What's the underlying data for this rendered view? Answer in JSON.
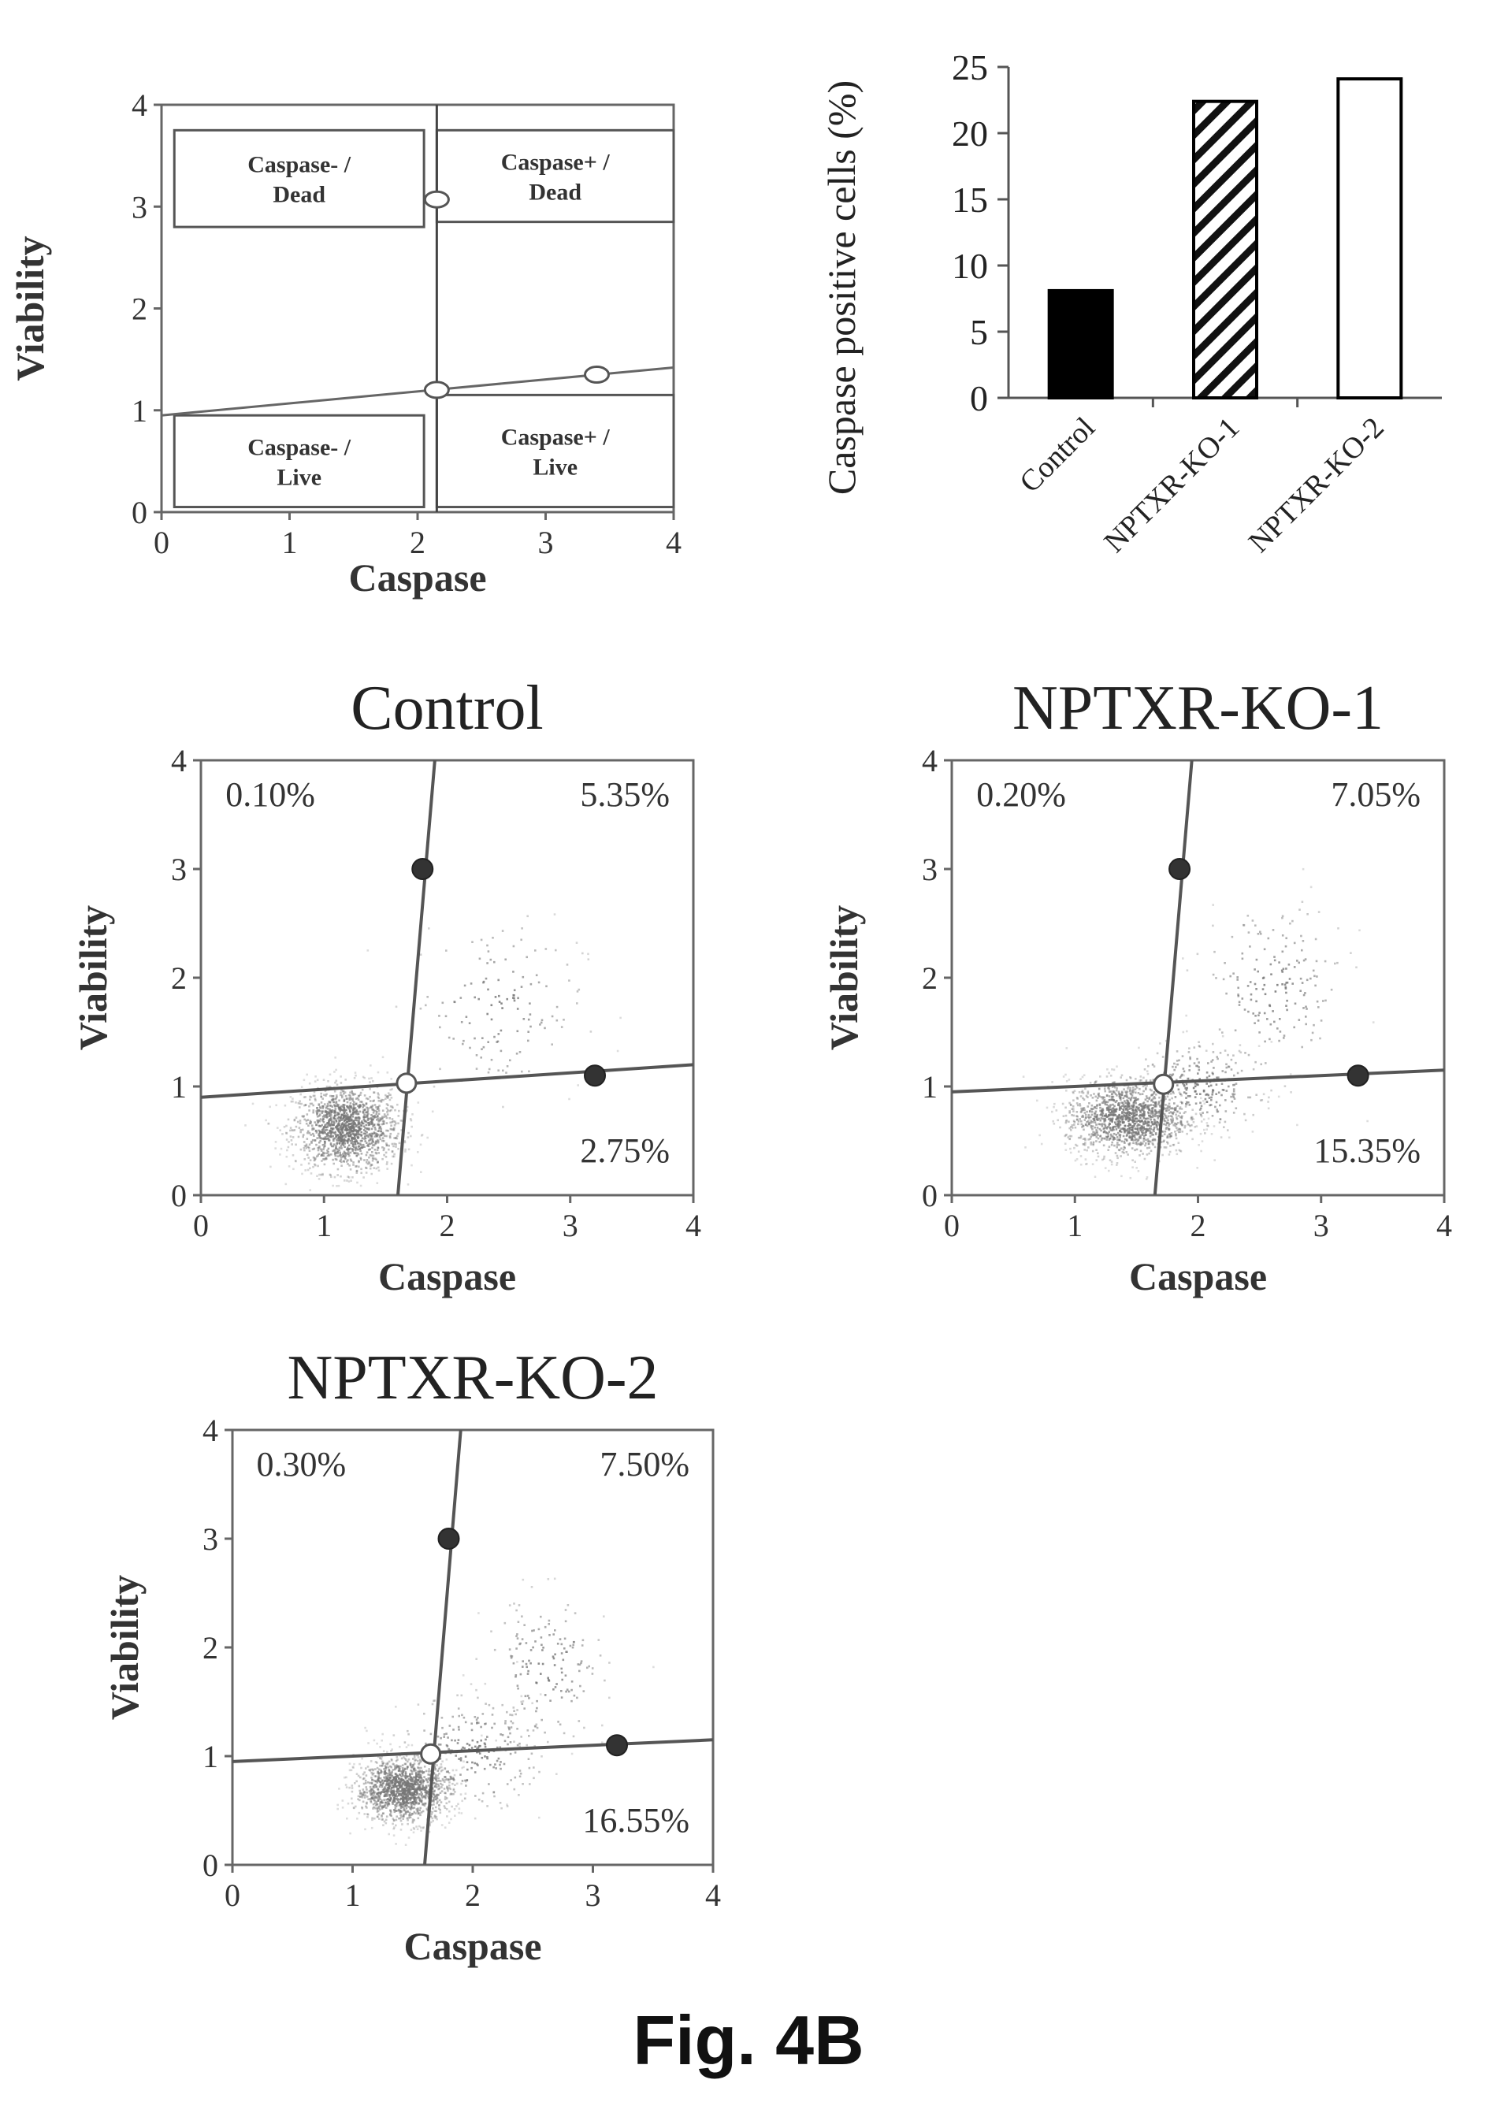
{
  "figure_label": "Fig. 4B",
  "chart_data": [
    {
      "type": "scatter",
      "id": "gating-schematic",
      "title": "",
      "xlabel": "Caspase",
      "ylabel": "Viability",
      "xlim": [
        0,
        4
      ],
      "ylim": [
        0,
        4
      ],
      "xticks": [
        "0",
        "1",
        "2",
        "3",
        "4"
      ],
      "yticks": [
        "0",
        "1",
        "2",
        "3",
        "4"
      ],
      "grid": false,
      "vertical_gate": [
        [
          2.15,
          0
        ],
        [
          2.15,
          4
        ]
      ],
      "horizontal_gate": [
        [
          0,
          0.95
        ],
        [
          4,
          1.42
        ]
      ],
      "gate_markers": [
        [
          2.15,
          3.07
        ],
        [
          2.15,
          1.2
        ],
        [
          3.4,
          1.35
        ]
      ],
      "quadrants": [
        {
          "line1": "Caspase- /",
          "line2": "Dead",
          "box": [
            0.1,
            2.8,
            2.05,
            3.75
          ]
        },
        {
          "line1": "Caspase+ /",
          "line2": "Dead",
          "box": [
            2.15,
            2.85,
            4.0,
            3.75
          ]
        },
        {
          "line1": "Caspase- /",
          "line2": "Live",
          "box": [
            0.1,
            0.05,
            2.05,
            0.95
          ]
        },
        {
          "line1": "Caspase+ /",
          "line2": "Live",
          "box": [
            2.15,
            0.05,
            4.0,
            1.15
          ]
        }
      ]
    },
    {
      "type": "bar",
      "id": "caspase-bar",
      "title": "",
      "xlabel": "",
      "ylabel": "Caspase positive cells (%)",
      "ylim": [
        0,
        25
      ],
      "yticks": [
        "0",
        "5",
        "10",
        "15",
        "20",
        "25"
      ],
      "categories": [
        "Control",
        "NPTXR-KO-1",
        "NPTXR-KO-2"
      ],
      "values": [
        8.1,
        22.4,
        24.1
      ],
      "fills": [
        "solid-black",
        "hatched",
        "white"
      ],
      "grid": false
    },
    {
      "type": "scatter",
      "id": "control-plot",
      "title": "Control",
      "xlabel": "Caspase",
      "ylabel": "Viability",
      "xlim": [
        0,
        4
      ],
      "ylim": [
        0,
        4
      ],
      "xticks": [
        "0",
        "1",
        "2",
        "3",
        "4"
      ],
      "yticks": [
        "0",
        "1",
        "2",
        "3",
        "4"
      ],
      "percentages": {
        "top_left": "0.10%",
        "top_right": "5.35%",
        "bottom_right": "2.75%"
      },
      "vertical_gate": [
        [
          1.6,
          0
        ],
        [
          1.9,
          4
        ]
      ],
      "horizontal_gate": [
        [
          0,
          0.9
        ],
        [
          4,
          1.2
        ]
      ],
      "gate_markers_filled": [
        [
          1.8,
          3.0
        ],
        [
          3.2,
          1.1
        ]
      ],
      "gate_marker_open": [
        1.67,
        1.03
      ],
      "clusters": [
        {
          "cx": 1.18,
          "cy": 0.62,
          "sx": 0.22,
          "sy": 0.2,
          "n": 1400
        },
        {
          "cx": 2.4,
          "cy": 1.75,
          "sx": 0.35,
          "sy": 0.4,
          "n": 140
        }
      ]
    },
    {
      "type": "scatter",
      "id": "nptxr-ko-1-plot",
      "title": "NPTXR-KO-1",
      "xlabel": "Caspase",
      "ylabel": "Viability",
      "xlim": [
        0,
        4
      ],
      "ylim": [
        0,
        4
      ],
      "xticks": [
        "0",
        "1",
        "2",
        "3",
        "4"
      ],
      "yticks": [
        "0",
        "1",
        "2",
        "3",
        "4"
      ],
      "percentages": {
        "top_left": "0.20%",
        "top_right": "7.05%",
        "bottom_right": "15.35%"
      },
      "vertical_gate": [
        [
          1.65,
          0
        ],
        [
          1.95,
          4
        ]
      ],
      "horizontal_gate": [
        [
          0,
          0.95
        ],
        [
          4,
          1.15
        ]
      ],
      "gate_markers_filled": [
        [
          1.85,
          3.0
        ],
        [
          3.3,
          1.1
        ]
      ],
      "gate_marker_open": [
        1.72,
        1.02
      ],
      "clusters": [
        {
          "cx": 1.42,
          "cy": 0.72,
          "sx": 0.25,
          "sy": 0.18,
          "n": 1300
        },
        {
          "cx": 2.0,
          "cy": 1.0,
          "sx": 0.25,
          "sy": 0.2,
          "n": 260
        },
        {
          "cx": 2.6,
          "cy": 1.9,
          "sx": 0.3,
          "sy": 0.4,
          "n": 180
        }
      ]
    },
    {
      "type": "scatter",
      "id": "nptxr-ko-2-plot",
      "title": "NPTXR-KO-2",
      "xlabel": "Caspase",
      "ylabel": "Viability",
      "xlim": [
        0,
        4
      ],
      "ylim": [
        0,
        4
      ],
      "xticks": [
        "0",
        "1",
        "2",
        "3",
        "4"
      ],
      "yticks": [
        "0",
        "1",
        "2",
        "3",
        "4"
      ],
      "percentages": {
        "top_left": "0.30%",
        "top_right": "7.50%",
        "bottom_right": "16.55%"
      },
      "vertical_gate": [
        [
          1.6,
          0
        ],
        [
          1.9,
          4
        ]
      ],
      "horizontal_gate": [
        [
          0,
          0.95
        ],
        [
          4,
          1.15
        ]
      ],
      "gate_markers_filled": [
        [
          1.8,
          3.0
        ],
        [
          3.2,
          1.1
        ]
      ],
      "gate_marker_open": [
        1.65,
        1.02
      ],
      "clusters": [
        {
          "cx": 1.42,
          "cy": 0.7,
          "sx": 0.2,
          "sy": 0.15,
          "n": 1300
        },
        {
          "cx": 2.0,
          "cy": 1.05,
          "sx": 0.3,
          "sy": 0.25,
          "n": 250
        },
        {
          "cx": 2.6,
          "cy": 1.8,
          "sx": 0.25,
          "sy": 0.35,
          "n": 160
        }
      ]
    }
  ]
}
